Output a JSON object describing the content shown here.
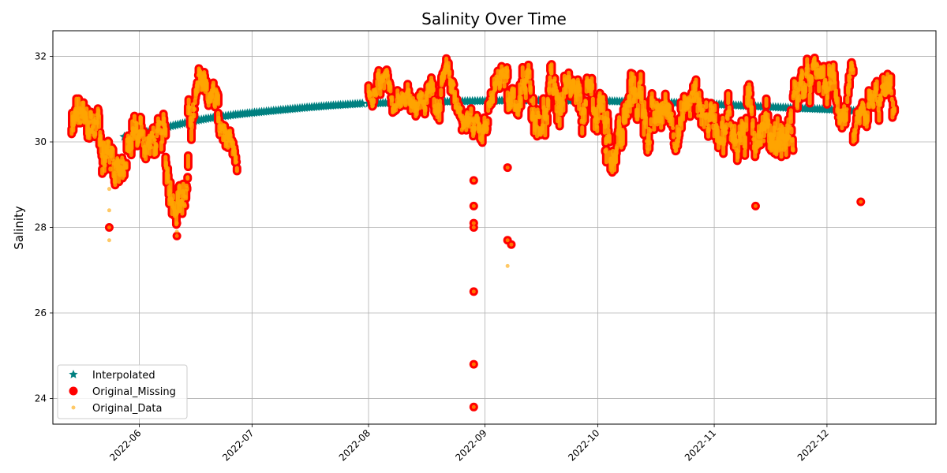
{
  "chart_data": {
    "type": "scatter",
    "title": "Salinity Over Time",
    "xlabel": "",
    "ylabel": "Salinity",
    "xlim": [
      "2022-05-09",
      "2022-12-30"
    ],
    "ylim": [
      23.4,
      32.6
    ],
    "x_ticks": [
      "2022-06",
      "2022-07",
      "2022-08",
      "2022-09",
      "2022-10",
      "2022-11",
      "2022-12"
    ],
    "y_ticks": [
      24,
      26,
      28,
      30,
      32
    ],
    "grid": true,
    "legend_position": "lower-left",
    "colors": {
      "interpolated": "#008080",
      "missing": "#ff0000",
      "original": "#ffa500"
    },
    "series": [
      {
        "name": "Interpolated",
        "marker": "star",
        "segments": [
          {
            "x": [
              "2022-05-28",
              "2022-06-01",
              "2022-06-05",
              "2022-06-10",
              "2022-06-15",
              "2022-06-20",
              "2022-06-26",
              "2022-07-01",
              "2022-07-08",
              "2022-07-15",
              "2022-07-22",
              "2022-07-31"
            ],
            "y": [
              30.12,
              30.2,
              30.28,
              30.38,
              30.48,
              30.56,
              30.63,
              30.68,
              30.74,
              30.8,
              30.85,
              30.9
            ]
          },
          {
            "x": [
              "2022-08-01",
              "2022-08-10",
              "2022-08-20",
              "2022-09-01",
              "2022-09-10",
              "2022-09-20",
              "2022-10-01",
              "2022-10-10",
              "2022-10-20",
              "2022-11-01",
              "2022-11-10",
              "2022-11-20",
              "2022-12-01",
              "2022-12-10"
            ],
            "y": [
              30.9,
              30.92,
              30.94,
              30.96,
              30.97,
              30.97,
              30.96,
              30.94,
              30.92,
              30.88,
              30.84,
              30.8,
              30.76,
              30.72
            ]
          }
        ]
      },
      {
        "name": "Original_Missing",
        "marker": "circle",
        "outliers": {
          "x": [
            "2022-05-24",
            "2022-08-29",
            "2022-08-29",
            "2022-08-29",
            "2022-08-29",
            "2022-08-29",
            "2022-08-29",
            "2022-08-29",
            "2022-09-07",
            "2022-09-07",
            "2022-09-08",
            "2022-11-12",
            "2022-12-10",
            "2022-06-11",
            "2022-06-11"
          ],
          "y": [
            28.0,
            29.1,
            28.5,
            28.1,
            28.0,
            26.5,
            24.8,
            23.8,
            29.4,
            27.7,
            27.6,
            28.5,
            28.6,
            27.8,
            28.1
          ]
        }
      },
      {
        "name": "Original_Data",
        "marker": "dot",
        "outliers": {
          "x": [
            "2022-05-24",
            "2022-05-24",
            "2022-05-24",
            "2022-09-07",
            "2022-06-11"
          ],
          "y": [
            28.4,
            27.7,
            28.9,
            27.1,
            27.9
          ]
        }
      }
    ],
    "observed_segments": [
      {
        "start": "2022-05-14",
        "end": "2022-05-30",
        "knots": [
          [
            "2022-05-14",
            30.2
          ],
          [
            "2022-05-18",
            29.9
          ],
          [
            "2022-05-22",
            30.1
          ],
          [
            "2022-05-26",
            29.95
          ],
          [
            "2022-05-30",
            30.05
          ]
        ],
        "amp": 0.75
      },
      {
        "start": "2022-05-30",
        "end": "2022-06-08",
        "knots": [
          [
            "2022-05-30",
            30.05
          ],
          [
            "2022-06-03",
            30.0
          ],
          [
            "2022-06-08",
            29.8
          ]
        ],
        "amp": 0.6
      },
      {
        "start": "2022-06-08",
        "end": "2022-06-14",
        "knots": [
          [
            "2022-06-08",
            29.5
          ],
          [
            "2022-06-11",
            29.0
          ],
          [
            "2022-06-14",
            29.3
          ]
        ],
        "amp": 0.7
      },
      {
        "start": "2022-06-14",
        "end": "2022-06-22",
        "knots": [
          [
            "2022-06-14",
            30.6
          ],
          [
            "2022-06-18",
            31.2
          ],
          [
            "2022-06-22",
            30.9
          ]
        ],
        "amp": 0.55
      },
      {
        "start": "2022-06-22",
        "end": "2022-06-27",
        "knots": [
          [
            "2022-06-22",
            30.3
          ],
          [
            "2022-06-25",
            29.7
          ],
          [
            "2022-06-27",
            29.0
          ]
        ],
        "amp": 0.5
      },
      {
        "start": "2022-08-01",
        "end": "2022-08-18",
        "knots": [
          [
            "2022-08-01",
            31.0
          ],
          [
            "2022-08-06",
            31.1
          ],
          [
            "2022-08-10",
            31.4
          ],
          [
            "2022-08-14",
            31.2
          ],
          [
            "2022-08-18",
            31.3
          ]
        ],
        "amp": 0.45
      },
      {
        "start": "2022-08-18",
        "end": "2022-08-29",
        "knots": [
          [
            "2022-08-18",
            31.3
          ],
          [
            "2022-08-22",
            31.2
          ],
          [
            "2022-08-26",
            30.7
          ],
          [
            "2022-08-29",
            30.4
          ]
        ],
        "amp": 0.55
      },
      {
        "start": "2022-08-29",
        "end": "2022-09-07",
        "knots": [
          [
            "2022-08-29",
            30.4
          ],
          [
            "2022-09-02",
            30.8
          ],
          [
            "2022-09-07",
            31.3
          ]
        ],
        "amp": 0.5
      },
      {
        "start": "2022-09-07",
        "end": "2022-09-20",
        "knots": [
          [
            "2022-09-07",
            31.4
          ],
          [
            "2022-09-12",
            31.1
          ],
          [
            "2022-09-16",
            30.9
          ],
          [
            "2022-09-20",
            31.2
          ]
        ],
        "amp": 0.6
      },
      {
        "start": "2022-09-20",
        "end": "2022-10-03",
        "knots": [
          [
            "2022-09-20",
            30.9
          ],
          [
            "2022-09-25",
            30.5
          ],
          [
            "2022-09-30",
            30.6
          ],
          [
            "2022-10-03",
            30.2
          ]
        ],
        "amp": 0.75
      },
      {
        "start": "2022-10-03",
        "end": "2022-10-16",
        "knots": [
          [
            "2022-10-03",
            30.0
          ],
          [
            "2022-10-08",
            30.5
          ],
          [
            "2022-10-12",
            30.8
          ],
          [
            "2022-10-16",
            30.4
          ]
        ],
        "amp": 0.75
      },
      {
        "start": "2022-10-16",
        "end": "2022-11-01",
        "knots": [
          [
            "2022-10-16",
            30.2
          ],
          [
            "2022-10-22",
            30.5
          ],
          [
            "2022-10-26",
            30.9
          ],
          [
            "2022-11-01",
            30.6
          ]
        ],
        "amp": 0.6
      },
      {
        "start": "2022-11-01",
        "end": "2022-11-22",
        "knots": [
          [
            "2022-11-01",
            30.8
          ],
          [
            "2022-11-08",
            30.5
          ],
          [
            "2022-11-14",
            30.7
          ],
          [
            "2022-11-22",
            30.5
          ]
        ],
        "amp": 0.75
      },
      {
        "start": "2022-11-22",
        "end": "2022-12-08",
        "knots": [
          [
            "2022-11-22",
            31.0
          ],
          [
            "2022-11-28",
            31.2
          ],
          [
            "2022-12-03",
            31.0
          ],
          [
            "2022-12-08",
            31.1
          ]
        ],
        "amp": 0.6
      },
      {
        "start": "2022-12-08",
        "end": "2022-12-19",
        "knots": [
          [
            "2022-12-08",
            30.0
          ],
          [
            "2022-12-12",
            30.4
          ],
          [
            "2022-12-16",
            30.8
          ],
          [
            "2022-12-19",
            30.7
          ]
        ],
        "amp": 0.6
      }
    ]
  }
}
